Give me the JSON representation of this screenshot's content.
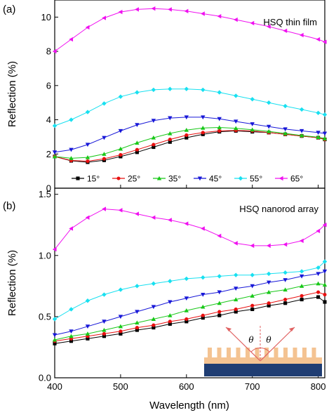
{
  "chart_data": [
    {
      "type": "line",
      "panel_label": "(a)",
      "annotation": "HSQ thin film",
      "xlabel": "",
      "ylabel": "Reflection (%)",
      "xlim": [
        400,
        810
      ],
      "ylim": [
        0,
        11
      ],
      "xticks": [
        400,
        500,
        600,
        700,
        800
      ],
      "yticks": [
        0,
        2,
        4,
        6,
        8,
        10
      ],
      "show_x_ticklabels": false,
      "legend": "bottom, single row",
      "x": [
        400,
        425,
        450,
        475,
        500,
        525,
        550,
        575,
        600,
        625,
        650,
        675,
        700,
        725,
        750,
        775,
        800,
        810
      ],
      "series": [
        {
          "name": "15°",
          "color": "#000000",
          "marker": "square",
          "values": [
            1.85,
            1.6,
            1.52,
            1.63,
            1.85,
            2.1,
            2.4,
            2.7,
            2.95,
            3.15,
            3.3,
            3.35,
            3.3,
            3.25,
            3.15,
            3.05,
            2.95,
            2.85
          ]
        },
        {
          "name": "25°",
          "color": "#e81010",
          "marker": "circle",
          "values": [
            1.85,
            1.62,
            1.58,
            1.72,
            1.95,
            2.25,
            2.55,
            2.85,
            3.1,
            3.25,
            3.35,
            3.38,
            3.35,
            3.25,
            3.15,
            3.05,
            2.95,
            2.85
          ]
        },
        {
          "name": "35°",
          "color": "#18c818",
          "marker": "triangle-up",
          "values": [
            1.85,
            1.75,
            1.8,
            2.0,
            2.3,
            2.65,
            2.95,
            3.2,
            3.4,
            3.52,
            3.55,
            3.5,
            3.42,
            3.32,
            3.2,
            3.08,
            2.98,
            2.9
          ]
        },
        {
          "name": "45°",
          "color": "#1818d8",
          "marker": "triangle-down",
          "values": [
            2.1,
            2.25,
            2.55,
            2.95,
            3.35,
            3.7,
            3.95,
            4.1,
            4.15,
            4.15,
            4.05,
            3.9,
            3.75,
            3.6,
            3.45,
            3.35,
            3.25,
            3.2
          ]
        },
        {
          "name": "55°",
          "color": "#18e0f0",
          "marker": "diamond",
          "values": [
            3.65,
            4.0,
            4.45,
            4.95,
            5.35,
            5.6,
            5.75,
            5.8,
            5.8,
            5.75,
            5.6,
            5.4,
            5.2,
            5.0,
            4.8,
            4.6,
            4.4,
            4.3
          ]
        },
        {
          "name": "65°",
          "color": "#f010f0",
          "marker": "triangle-left",
          "values": [
            8.0,
            8.7,
            9.4,
            9.95,
            10.3,
            10.45,
            10.5,
            10.45,
            10.35,
            10.2,
            10.05,
            9.85,
            9.65,
            9.45,
            9.2,
            8.95,
            8.7,
            8.55
          ]
        }
      ]
    },
    {
      "type": "line",
      "panel_label": "(b)",
      "annotation": "HSQ nanorod array",
      "xlabel": "Wavelength (nm)",
      "ylabel": "Reflection (%)",
      "xlim": [
        400,
        810
      ],
      "ylim": [
        0,
        1.55
      ],
      "xticks": [
        400,
        500,
        600,
        700,
        800
      ],
      "yticks": [
        0.0,
        0.5,
        1.0,
        1.5
      ],
      "ytick_labels": [
        "0.0",
        "0.5",
        "1.0",
        "1.5"
      ],
      "show_x_ticklabels": true,
      "inset": {
        "angle_labels": [
          "θ",
          "θ"
        ]
      },
      "x": [
        400,
        425,
        450,
        475,
        500,
        525,
        550,
        575,
        600,
        625,
        650,
        675,
        700,
        725,
        750,
        775,
        800,
        810
      ],
      "series": [
        {
          "name": "15°",
          "color": "#000000",
          "marker": "square",
          "values": [
            0.28,
            0.3,
            0.32,
            0.34,
            0.36,
            0.39,
            0.41,
            0.44,
            0.46,
            0.49,
            0.51,
            0.54,
            0.56,
            0.59,
            0.61,
            0.64,
            0.66,
            0.62
          ]
        },
        {
          "name": "25°",
          "color": "#e81010",
          "marker": "circle",
          "values": [
            0.3,
            0.32,
            0.34,
            0.36,
            0.38,
            0.41,
            0.43,
            0.46,
            0.48,
            0.51,
            0.54,
            0.56,
            0.59,
            0.61,
            0.64,
            0.67,
            0.7,
            0.68
          ]
        },
        {
          "name": "35°",
          "color": "#18c818",
          "marker": "triangle-up",
          "values": [
            0.31,
            0.34,
            0.36,
            0.39,
            0.42,
            0.45,
            0.48,
            0.51,
            0.55,
            0.58,
            0.61,
            0.64,
            0.67,
            0.7,
            0.72,
            0.75,
            0.77,
            0.76
          ]
        },
        {
          "name": "45°",
          "color": "#1818d8",
          "marker": "triangle-down",
          "values": [
            0.35,
            0.38,
            0.42,
            0.46,
            0.5,
            0.54,
            0.58,
            0.62,
            0.65,
            0.68,
            0.7,
            0.73,
            0.75,
            0.78,
            0.8,
            0.83,
            0.85,
            0.87
          ]
        },
        {
          "name": "55°",
          "color": "#18e0f0",
          "marker": "diamond",
          "values": [
            0.48,
            0.56,
            0.63,
            0.68,
            0.72,
            0.75,
            0.77,
            0.79,
            0.81,
            0.82,
            0.83,
            0.84,
            0.84,
            0.85,
            0.86,
            0.87,
            0.9,
            0.95
          ]
        },
        {
          "name": "65°",
          "color": "#f010f0",
          "marker": "triangle-left",
          "values": [
            1.05,
            1.22,
            1.31,
            1.38,
            1.37,
            1.34,
            1.31,
            1.29,
            1.26,
            1.22,
            1.16,
            1.1,
            1.08,
            1.08,
            1.09,
            1.12,
            1.2,
            1.25
          ]
        }
      ]
    }
  ]
}
